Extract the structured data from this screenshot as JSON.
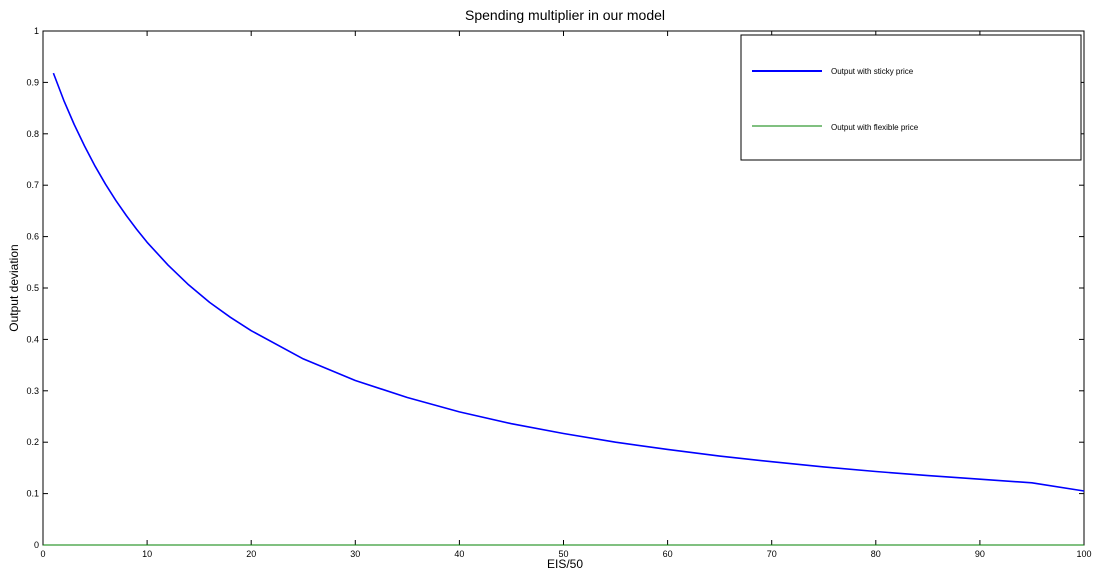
{
  "chart_data": {
    "type": "line",
    "title": "Spending multiplier in our model",
    "xlabel": "EIS/50",
    "ylabel": "Output deviation",
    "xlim": [
      0,
      100
    ],
    "ylim": [
      0,
      1
    ],
    "xticks": [
      0,
      10,
      20,
      30,
      40,
      50,
      60,
      70,
      80,
      90,
      100
    ],
    "yticks": [
      0,
      0.1,
      0.2,
      0.3,
      0.4,
      0.5,
      0.6,
      0.7,
      0.8,
      0.9,
      1
    ],
    "xtick_labels": [
      "0",
      "10",
      "20",
      "30",
      "40",
      "50",
      "60",
      "70",
      "80",
      "90",
      "100"
    ],
    "ytick_labels": [
      "0",
      "0.1",
      "0.2",
      "0.3",
      "0.4",
      "0.5",
      "0.6",
      "0.7",
      "0.8",
      "0.9",
      "1"
    ],
    "grid": false,
    "legend_position": "top-right",
    "series": [
      {
        "name": "Output with sticky price",
        "color": "#0000ff",
        "x": [
          1,
          2,
          3,
          4,
          5,
          6,
          7,
          8,
          9,
          10,
          12,
          14,
          16,
          18,
          20,
          25,
          30,
          35,
          40,
          45,
          50,
          55,
          60,
          65,
          70,
          75,
          80,
          85,
          90,
          95,
          100
        ],
        "y": [
          0.918,
          0.865,
          0.818,
          0.776,
          0.737,
          0.702,
          0.67,
          0.641,
          0.614,
          0.589,
          0.545,
          0.506,
          0.472,
          0.443,
          0.417,
          0.362,
          0.32,
          0.287,
          0.259,
          0.236,
          0.217,
          0.2,
          0.186,
          0.173,
          0.162,
          0.152,
          0.143,
          0.135,
          0.128,
          0.121,
          0.105
        ]
      },
      {
        "name": "Output with flexible price",
        "color": "#008000",
        "x": [
          0,
          100
        ],
        "y": [
          0,
          0
        ]
      }
    ]
  }
}
